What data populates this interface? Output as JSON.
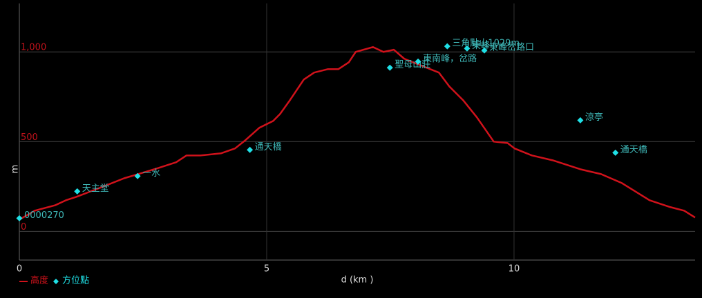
{
  "chart_data": {
    "type": "line",
    "x_label": "d (km )",
    "y_label": "m",
    "xlim": [
      0,
      13.66
    ],
    "ylim": [
      -160,
      1270
    ],
    "xticks": [
      0,
      5,
      10
    ],
    "yticks": [
      0,
      500,
      {
        "value": 1000,
        "label": "1,000"
      }
    ],
    "grid": true,
    "series": [
      {
        "name": "高度",
        "type": "line",
        "color": "#d0121b",
        "x": [
          0,
          0.31,
          0.73,
          0.94,
          1.15,
          1.7,
          2.12,
          2.4,
          2.82,
          3.17,
          3.38,
          3.66,
          4.08,
          4.36,
          4.57,
          4.85,
          5.13,
          5.27,
          5.47,
          5.75,
          5.96,
          6.24,
          6.45,
          6.66,
          6.8,
          7.15,
          7.36,
          7.57,
          7.78,
          8.13,
          8.48,
          8.69,
          8.97,
          9.25,
          9.59,
          9.87,
          10.01,
          10.36,
          10.78,
          11.34,
          11.76,
          12.18,
          12.74,
          13.16,
          13.44,
          13.66
        ],
        "values": [
          65,
          115,
          146,
          173,
          192,
          250,
          296,
          319,
          354,
          385,
          423,
          423,
          435,
          462,
          508,
          577,
          615,
          654,
          731,
          846,
          885,
          904,
          904,
          942,
          1000,
          1027,
          1000,
          1012,
          962,
          923,
          885,
          808,
          731,
          635,
          500,
          492,
          462,
          423,
          396,
          346,
          319,
          269,
          173,
          135,
          115,
          77
        ]
      },
      {
        "name": "方位點",
        "type": "scatter",
        "color": "#1fe0e6",
        "x": [
          0,
          1.17,
          2.39,
          4.66,
          7.49,
          8.06,
          8.65,
          9.05,
          9.4,
          11.34,
          12.05
        ],
        "values": [
          73,
          223,
          308,
          454,
          912,
          946,
          1031,
          1019,
          1008,
          619,
          438
        ],
        "labels": [
          "0000270",
          "天主堂",
          "一水",
          "通天橋",
          "聖母山莊",
          "東南峰，岔路",
          "三角點山1029m",
          "東峰",
          "東峰岔路口",
          "涼亭",
          "通天橋"
        ]
      }
    ]
  }
}
